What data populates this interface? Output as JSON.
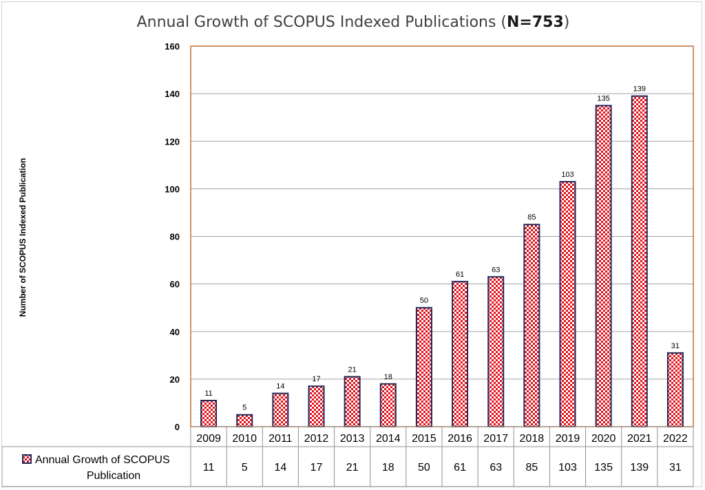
{
  "chart_data": {
    "type": "bar",
    "title": "Annual Growth of SCOPUS Indexed Publications (",
    "title_bold": "N=753",
    "title_end": ")",
    "ylabel": "Number of SCOPUS Indexed Publication",
    "xlabel": "",
    "ylim": [
      0,
      160
    ],
    "yticks": [
      0,
      20,
      40,
      60,
      80,
      100,
      120,
      140,
      160
    ],
    "grid": true,
    "categories": [
      "2009",
      "2010",
      "2011",
      "2012",
      "2013",
      "2014",
      "2015",
      "2016",
      "2017",
      "2018",
      "2019",
      "2020",
      "2021",
      "2022"
    ],
    "series": [
      {
        "name": "Annual Growth of SCOPUS Publication",
        "name_lines": [
          "Annual Growth of SCOPUS",
          "Publication"
        ],
        "values": [
          11,
          5,
          14,
          17,
          21,
          18,
          50,
          61,
          63,
          85,
          103,
          135,
          139,
          31
        ]
      }
    ],
    "data_table": true,
    "colors": {
      "bar_fill_primary": "#e0101a",
      "bar_fill_secondary": "#ffffff",
      "bar_outline": "#1f2a5a",
      "plot_border": "#c07030",
      "grid": "#a0a0a0"
    }
  }
}
